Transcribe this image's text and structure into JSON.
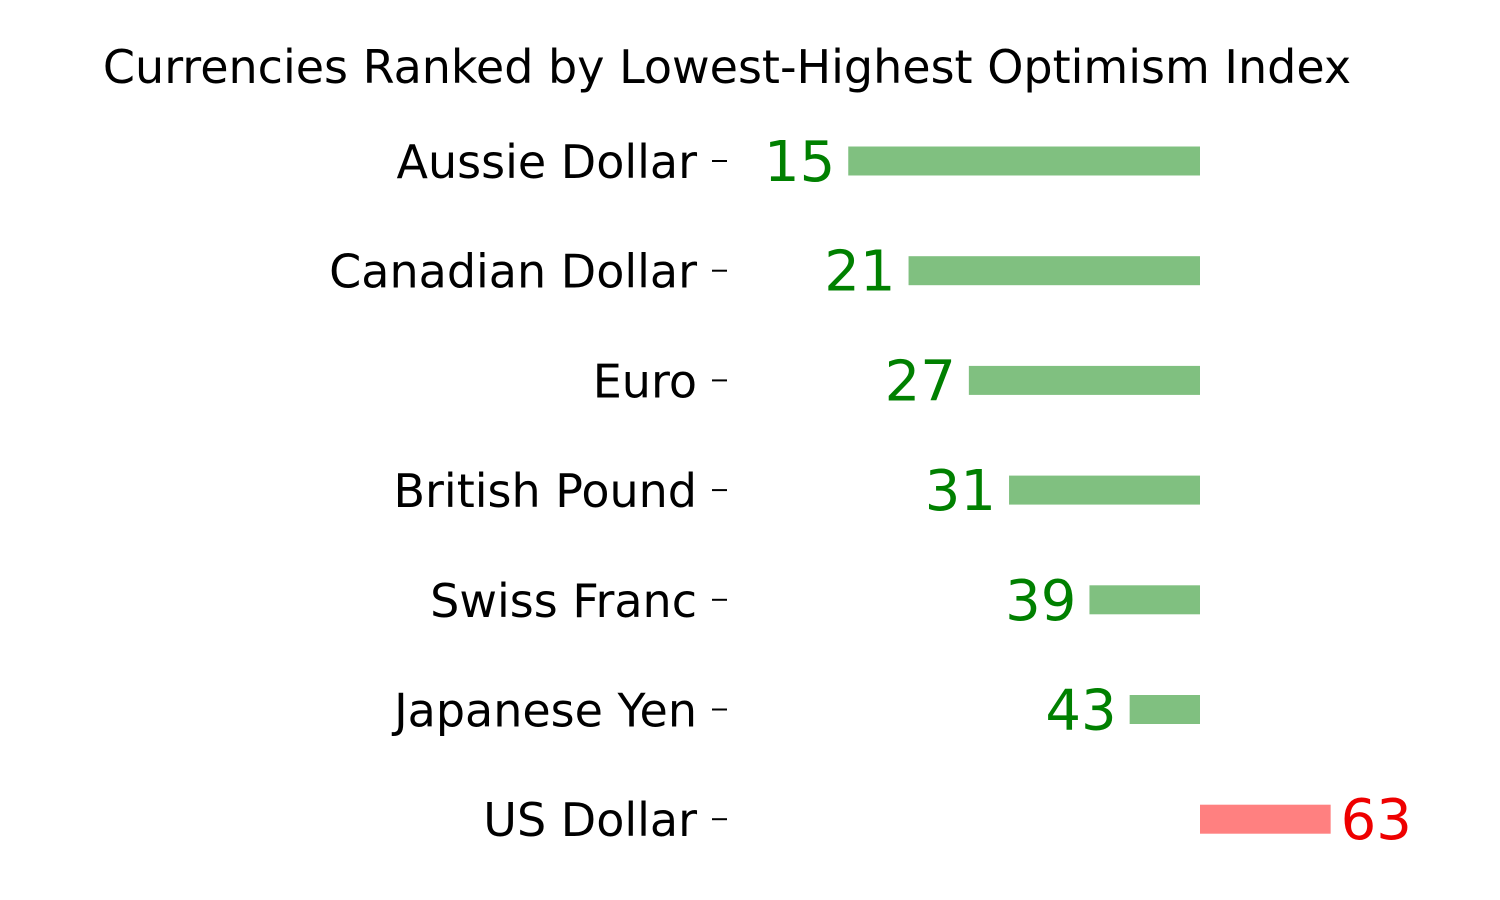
{
  "chart_data": {
    "type": "bar",
    "orientation": "horizontal",
    "title": "Currencies Ranked by Lowest-Highest Optimism Index",
    "xlabel": "",
    "ylabel": "",
    "baseline": 50,
    "categories": [
      "Aussie Dollar",
      "Canadian Dollar",
      "Euro",
      "British Pound",
      "Swiss Franc",
      "Japanese Yen",
      "US Dollar"
    ],
    "values": [
      15,
      21,
      27,
      31,
      39,
      43,
      63
    ],
    "grid": false,
    "axes_visible": false,
    "colors": {
      "below_baseline_bar": "#80c080",
      "below_baseline_label": "#008000",
      "above_baseline_bar": "#ff8080",
      "above_baseline_label": "#ee0000"
    }
  }
}
